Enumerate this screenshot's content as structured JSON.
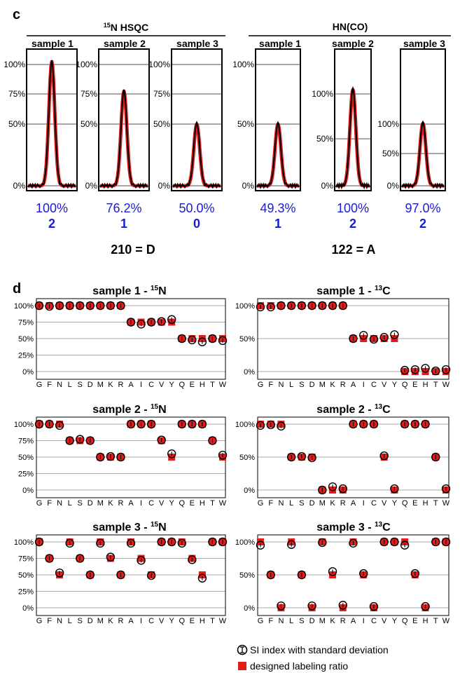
{
  "colors": {
    "blue": "#1a1ad6",
    "red": "#e21b1b",
    "black": "#000000",
    "grid": "#9a9a9a"
  },
  "panel_c": {
    "label": "c",
    "groups": [
      {
        "title_sup": "15",
        "title": "N HSQC",
        "samples": [
          "sample 1",
          "sample 2",
          "sample 3"
        ]
      },
      {
        "title": "HN(CO)",
        "samples": [
          "sample 1",
          "sample 2",
          "sample 3"
        ]
      }
    ],
    "codes": [
      "210 =  D",
      "122 =  A"
    ]
  },
  "panel_d": {
    "label": "d",
    "legend": {
      "si": "SI index with standard deviation",
      "designed": "designed labeling ratio"
    }
  },
  "chart_data": [
    {
      "type": "line",
      "ylabel_ticks": [
        "0%",
        "50%",
        "75%",
        "100%"
      ],
      "yrange": [
        0,
        100
      ],
      "peak": 100,
      "percent": "100%",
      "digit": "2"
    },
    {
      "type": "line",
      "ylabel_ticks": [
        "0%",
        "50%",
        "75%",
        "100%"
      ],
      "yrange": [
        0,
        100
      ],
      "peak": 76.2,
      "percent": "76.2%",
      "digit": "1"
    },
    {
      "type": "line",
      "ylabel_ticks": [
        "0%",
        "50%",
        "75%",
        "100%"
      ],
      "yrange": [
        0,
        100
      ],
      "peak": 50,
      "percent": "50.0%",
      "digit": "0"
    },
    {
      "type": "line",
      "ylabel_ticks": [
        "0%",
        "50%",
        "100%"
      ],
      "yrange": [
        0,
        100
      ],
      "peak": 49.3,
      "percent": "49.3%",
      "digit": "1"
    },
    {
      "type": "line",
      "ylabel_ticks": [
        "0%",
        "50%",
        "100%"
      ],
      "yrange": [
        0,
        100
      ],
      "peak": 100,
      "percent": "100%",
      "digit": "2"
    },
    {
      "type": "line",
      "ylabel_ticks": [
        "0%",
        "50%",
        "100%"
      ],
      "yrange": [
        0,
        100
      ],
      "peak": 97,
      "percent": "97.0%",
      "digit": "2"
    },
    {
      "type": "scatter",
      "title": "sample 1 - ",
      "title_sup": "15",
      "title_el": "N",
      "categories": [
        "G",
        "F",
        "N",
        "L",
        "S",
        "D",
        "M",
        "K",
        "R",
        "A",
        "I",
        "C",
        "V",
        "Y",
        "Q",
        "E",
        "H",
        "T",
        "W"
      ],
      "yticks": [
        "0%",
        "25%",
        "50%",
        "75%",
        "100%"
      ],
      "ylim": [
        0,
        100
      ],
      "designed": [
        100,
        100,
        100,
        100,
        100,
        100,
        100,
        100,
        100,
        75,
        75,
        75,
        75,
        75,
        50,
        50,
        50,
        50,
        50
      ],
      "si": [
        100,
        99,
        100,
        100,
        100,
        100,
        100,
        100,
        100,
        75,
        72,
        75,
        76,
        79,
        50,
        48,
        45,
        50,
        47
      ]
    },
    {
      "type": "scatter",
      "title": "sample 1 - ",
      "title_sup": "13",
      "title_el": "C",
      "categories": [
        "G",
        "F",
        "N",
        "L",
        "S",
        "D",
        "M",
        "K",
        "R",
        "A",
        "I",
        "C",
        "V",
        "Y",
        "Q",
        "E",
        "H",
        "T",
        "W"
      ],
      "yticks": [
        "0%",
        "50%",
        "100%"
      ],
      "ylim": [
        0,
        100
      ],
      "designed": [
        100,
        100,
        100,
        100,
        100,
        100,
        100,
        100,
        100,
        50,
        50,
        50,
        50,
        50,
        0,
        0,
        0,
        0,
        0
      ],
      "si": [
        98,
        98,
        100,
        100,
        100,
        100,
        100,
        100,
        100,
        50,
        55,
        49,
        52,
        56,
        2,
        3,
        5,
        1,
        3
      ]
    },
    {
      "type": "scatter",
      "title": "sample 2 - ",
      "title_sup": "15",
      "title_el": "N",
      "categories": [
        "G",
        "F",
        "N",
        "L",
        "S",
        "D",
        "M",
        "K",
        "R",
        "A",
        "I",
        "C",
        "V",
        "Y",
        "Q",
        "E",
        "H",
        "T",
        "W"
      ],
      "yticks": [
        "0%",
        "25%",
        "50%",
        "75%",
        "100%"
      ],
      "ylim": [
        0,
        100
      ],
      "designed": [
        100,
        100,
        100,
        75,
        75,
        75,
        50,
        50,
        50,
        100,
        100,
        100,
        75,
        50,
        100,
        100,
        100,
        75,
        50
      ],
      "si": [
        100,
        100,
        98,
        75,
        77,
        75,
        50,
        51,
        50,
        100,
        100,
        100,
        76,
        55,
        100,
        100,
        100,
        75,
        53
      ]
    },
    {
      "type": "scatter",
      "title": "sample 2 - ",
      "title_sup": "13",
      "title_el": "C",
      "categories": [
        "G",
        "F",
        "N",
        "L",
        "S",
        "D",
        "M",
        "K",
        "R",
        "A",
        "I",
        "C",
        "V",
        "Y",
        "Q",
        "E",
        "H",
        "T",
        "W"
      ],
      "yticks": [
        "0%",
        "50%",
        "100%"
      ],
      "ylim": [
        0,
        100
      ],
      "designed": [
        100,
        100,
        100,
        50,
        50,
        50,
        0,
        0,
        0,
        100,
        100,
        100,
        50,
        0,
        100,
        100,
        100,
        50,
        0
      ],
      "si": [
        98,
        99,
        97,
        50,
        51,
        49,
        0,
        5,
        2,
        100,
        100,
        100,
        52,
        2,
        100,
        100,
        100,
        50,
        2
      ]
    },
    {
      "type": "scatter",
      "title": "sample 3 - ",
      "title_sup": "15",
      "title_el": "N",
      "categories": [
        "G",
        "F",
        "N",
        "L",
        "S",
        "D",
        "M",
        "K",
        "R",
        "A",
        "I",
        "C",
        "V",
        "Y",
        "Q",
        "E",
        "H",
        "T",
        "W"
      ],
      "yticks": [
        "0%",
        "25%",
        "50%",
        "75%",
        "100%"
      ],
      "ylim": [
        0,
        100
      ],
      "designed": [
        100,
        75,
        50,
        100,
        75,
        50,
        100,
        75,
        50,
        100,
        75,
        50,
        100,
        100,
        100,
        75,
        50,
        100,
        100
      ],
      "si": [
        100,
        75,
        53,
        98,
        75,
        50,
        98,
        77,
        50,
        98,
        72,
        49,
        100,
        100,
        98,
        73,
        45,
        100,
        100
      ]
    },
    {
      "type": "scatter",
      "title": "sample 3 - ",
      "title_sup": "13",
      "title_el": "C",
      "categories": [
        "G",
        "F",
        "N",
        "L",
        "S",
        "D",
        "M",
        "K",
        "R",
        "A",
        "I",
        "C",
        "V",
        "Y",
        "Q",
        "E",
        "H",
        "T",
        "W"
      ],
      "yticks": [
        "0%",
        "50%",
        "100%"
      ],
      "ylim": [
        0,
        100
      ],
      "designed": [
        100,
        50,
        0,
        100,
        50,
        0,
        100,
        50,
        0,
        100,
        50,
        0,
        100,
        100,
        100,
        50,
        0,
        100,
        100
      ],
      "si": [
        95,
        50,
        3,
        96,
        50,
        3,
        99,
        55,
        4,
        98,
        52,
        2,
        100,
        100,
        95,
        52,
        2,
        100,
        100
      ]
    }
  ]
}
